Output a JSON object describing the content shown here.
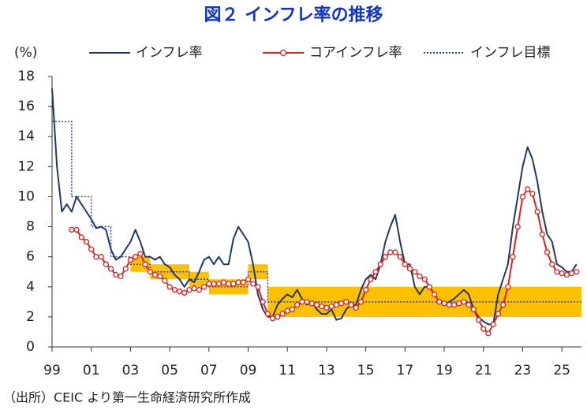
{
  "chart_data": {
    "type": "line",
    "title": "図２ インフレ率の推移",
    "unit_label": "(%)",
    "source": "（出所）CEIC より第一生命経済研究所作成",
    "xlim": [
      1999,
      2026
    ],
    "xticks": [
      {
        "value": 1999,
        "label": "99"
      },
      {
        "value": 2001,
        "label": "01"
      },
      {
        "value": 2003,
        "label": "03"
      },
      {
        "value": 2005,
        "label": "05"
      },
      {
        "value": 2007,
        "label": "07"
      },
      {
        "value": 2009,
        "label": "09"
      },
      {
        "value": 2011,
        "label": "11"
      },
      {
        "value": 2013,
        "label": "13"
      },
      {
        "value": 2015,
        "label": "15"
      },
      {
        "value": 2017,
        "label": "17"
      },
      {
        "value": 2019,
        "label": "19"
      },
      {
        "value": 2021,
        "label": "21"
      },
      {
        "value": 2023,
        "label": "23"
      },
      {
        "value": 2025,
        "label": "25"
      }
    ],
    "ylim": [
      0,
      18
    ],
    "yticks": [
      0,
      2,
      4,
      6,
      8,
      10,
      12,
      14,
      16,
      18
    ],
    "x": [
      1999,
      1999.25,
      1999.5,
      1999.75,
      2000,
      2000.25,
      2000.5,
      2000.75,
      2001,
      2001.25,
      2001.5,
      2001.75,
      2002,
      2002.25,
      2002.5,
      2002.75,
      2003,
      2003.25,
      2003.5,
      2003.75,
      2004,
      2004.25,
      2004.5,
      2004.75,
      2005,
      2005.25,
      2005.5,
      2005.75,
      2006,
      2006.25,
      2006.5,
      2006.75,
      2007,
      2007.25,
      2007.5,
      2007.75,
      2008,
      2008.25,
      2008.5,
      2008.75,
      2009,
      2009.25,
      2009.5,
      2009.75,
      2010,
      2010.25,
      2010.5,
      2010.75,
      2011,
      2011.25,
      2011.5,
      2011.75,
      2012,
      2012.25,
      2012.5,
      2012.75,
      2013,
      2013.25,
      2013.5,
      2013.75,
      2014,
      2014.25,
      2014.5,
      2014.75,
      2015,
      2015.25,
      2015.5,
      2015.75,
      2016,
      2016.25,
      2016.5,
      2016.75,
      2017,
      2017.25,
      2017.5,
      2017.75,
      2018,
      2018.25,
      2018.5,
      2018.75,
      2019,
      2019.25,
      2019.5,
      2019.75,
      2020,
      2020.25,
      2020.5,
      2020.75,
      2021,
      2021.25,
      2021.5,
      2021.75,
      2022,
      2022.25,
      2022.5,
      2022.75,
      2023,
      2023.25,
      2023.5,
      2023.75,
      2024,
      2024.25,
      2024.5,
      2024.75,
      2025,
      2025.25,
      2025.5,
      2025.75
    ],
    "series": [
      {
        "name": "インフレ率",
        "color": "#1f3864",
        "marker": "none",
        "values": [
          17.2,
          12,
          9,
          9.5,
          9,
          10,
          9.5,
          9,
          8.5,
          7.9,
          8,
          7.8,
          6.5,
          5.8,
          6,
          6.5,
          7,
          7.8,
          7,
          6,
          6,
          5.8,
          6,
          5.5,
          5.3,
          4.8,
          4.5,
          4,
          4.5,
          4.3,
          5,
          5.8,
          6,
          5.5,
          6,
          5.5,
          5.5,
          7.2,
          8,
          7.5,
          7,
          5.5,
          3.5,
          2.5,
          2,
          2,
          2.8,
          3.2,
          3.5,
          3.3,
          3.8,
          3.2,
          2.8,
          3,
          2.5,
          2.2,
          2.2,
          2.5,
          1.8,
          1.9,
          2.5,
          2.8,
          2.8,
          3.8,
          4.5,
          4.8,
          4.5,
          5.5,
          7,
          8,
          8.8,
          7,
          5.5,
          5.5,
          4,
          3.5,
          4,
          4,
          3.5,
          3,
          2.8,
          3,
          3.2,
          3.5,
          3.8,
          3.5,
          2.5,
          2,
          1.7,
          1.5,
          1.5,
          3.5,
          4.5,
          5.5,
          8,
          10,
          12,
          13.3,
          12.5,
          11,
          9,
          7.5,
          7,
          5.5,
          5.3,
          5,
          5,
          5.5
        ]
      },
      {
        "name": "コアインフレ率",
        "color": "#e02020",
        "marker": "circle",
        "values": [
          null,
          null,
          null,
          null,
          7.8,
          7.8,
          7.3,
          7,
          6.5,
          6,
          6,
          5.5,
          5.2,
          4.8,
          4.7,
          5.2,
          5.8,
          6,
          6.2,
          5.5,
          5,
          4.8,
          4.7,
          4.4,
          4,
          3.8,
          3.7,
          3.6,
          3.8,
          3.9,
          3.8,
          4,
          4.2,
          4.2,
          4.2,
          4.3,
          4.2,
          4.2,
          4.3,
          4.3,
          4.5,
          4.2,
          4,
          3,
          2.2,
          1.9,
          2,
          2.2,
          2.4,
          2.5,
          2.8,
          3,
          3,
          2.9,
          2.8,
          2.7,
          2.6,
          2.7,
          2.8,
          2.9,
          3,
          2.8,
          2.6,
          3,
          3.8,
          4.5,
          5,
          5.5,
          6,
          6.3,
          6.3,
          6,
          5.5,
          5.2,
          5,
          4.7,
          4.5,
          4,
          3.5,
          3,
          2.9,
          2.8,
          2.8,
          2.9,
          3,
          2.8,
          2.5,
          1.8,
          1.2,
          0.9,
          1.5,
          2.2,
          2.8,
          4,
          6,
          8,
          10,
          10.5,
          10.2,
          9,
          7.5,
          6.3,
          5.5,
          5,
          4.9,
          4.8,
          4.9,
          5
        ]
      }
    ],
    "target": {
      "name": "インフレ目標",
      "color": "#2f3fc8",
      "style": "dotted",
      "x": [
        1999,
        2000,
        2000,
        2001,
        2001,
        2002,
        2002,
        2003,
        2003,
        2004,
        2004,
        2006,
        2006,
        2007,
        2007,
        2009,
        2009,
        2010,
        2010,
        2026
      ],
      "values": [
        15,
        15,
        10,
        10,
        8,
        8,
        6,
        6,
        5.5,
        5.5,
        5,
        5,
        4.5,
        4.5,
        4,
        4,
        5,
        5,
        3,
        3
      ]
    },
    "bands": {
      "color": "#ffc000",
      "items": [
        {
          "start": 2003,
          "end": 2004,
          "low": 5,
          "high": 6
        },
        {
          "start": 2004,
          "end": 2006,
          "low": 4.5,
          "high": 5.5
        },
        {
          "start": 2006,
          "end": 2007,
          "low": 4,
          "high": 5
        },
        {
          "start": 2007,
          "end": 2009,
          "low": 3.5,
          "high": 4.5
        },
        {
          "start": 2009,
          "end": 2010,
          "low": 4.5,
          "high": 5.5
        },
        {
          "start": 2010,
          "end": 2026,
          "low": 2,
          "high": 4
        }
      ]
    }
  }
}
